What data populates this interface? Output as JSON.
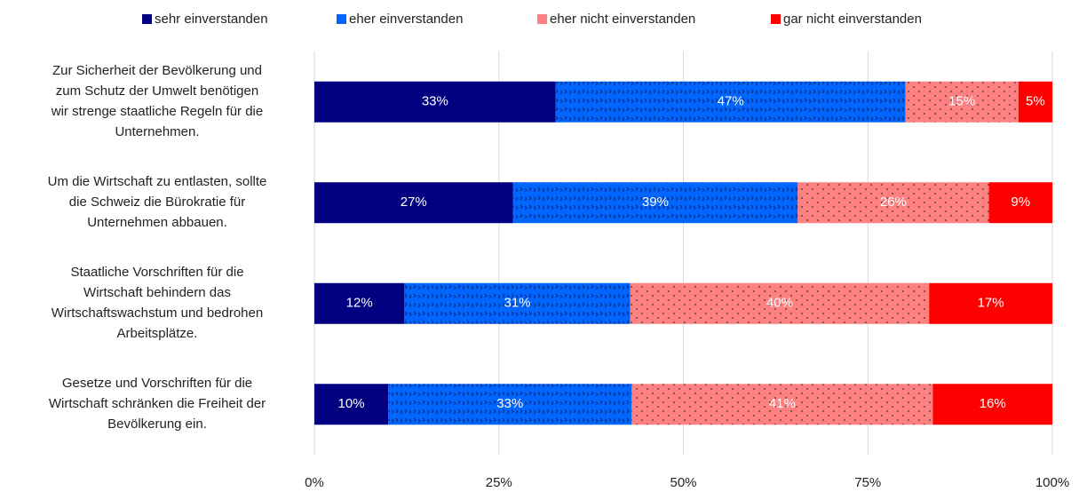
{
  "chart_data": {
    "type": "stacked-bar-horizontal",
    "categories": [
      [
        "Zur Sicherheit der Bevölkerung und",
        "zum Schutz der Umwelt benötigen",
        "wir strenge staatliche Regeln für die",
        "Unternehmen."
      ],
      [
        "Um die Wirtschaft zu entlasten, sollte",
        "die Schweiz die Bürokratie für",
        "Unternehmen abbauen."
      ],
      [
        "Staatliche Vorschriften für die",
        "Wirtschaft behindern das",
        "Wirtschaftswachstum und bedrohen",
        "Arbeitsplätze."
      ],
      [
        "Gesetze und Vorschriften für die",
        "Wirtschaft schränken die Freiheit der",
        "Bevölkerung ein."
      ]
    ],
    "series": [
      {
        "name": "sehr einverstanden",
        "color": "#000080",
        "values": [
          32.7,
          26.9,
          12.2,
          10.0
        ],
        "value_labels": [
          "33%",
          "27%",
          "12%",
          "10%"
        ]
      },
      {
        "name": "eher einverstanden",
        "color": "#0066ff",
        "pattern": "cross",
        "values": [
          47.4,
          38.6,
          30.6,
          33.0
        ],
        "value_labels": [
          "47%",
          "39%",
          "31%",
          "33%"
        ]
      },
      {
        "name": "eher nicht einverstanden",
        "color": "#ff8080",
        "pattern": "dots",
        "values": [
          15.3,
          25.9,
          40.5,
          40.8
        ],
        "value_labels": [
          "15%",
          "26%",
          "40%",
          "41%"
        ]
      },
      {
        "name": "gar nicht einverstanden",
        "color": "#ff0000",
        "values": [
          4.6,
          8.6,
          16.7,
          16.2
        ],
        "value_labels": [
          "5%",
          "9%",
          "17%",
          "16%"
        ]
      }
    ],
    "xlim": [
      0,
      100
    ],
    "xticks": [
      {
        "value": 0,
        "label": "0%"
      },
      {
        "value": 25,
        "label": "25%"
      },
      {
        "value": 50,
        "label": "50%"
      },
      {
        "value": 75,
        "label": "75%"
      },
      {
        "value": 100,
        "label": "100%"
      }
    ],
    "grid": true,
    "legend": "top"
  }
}
